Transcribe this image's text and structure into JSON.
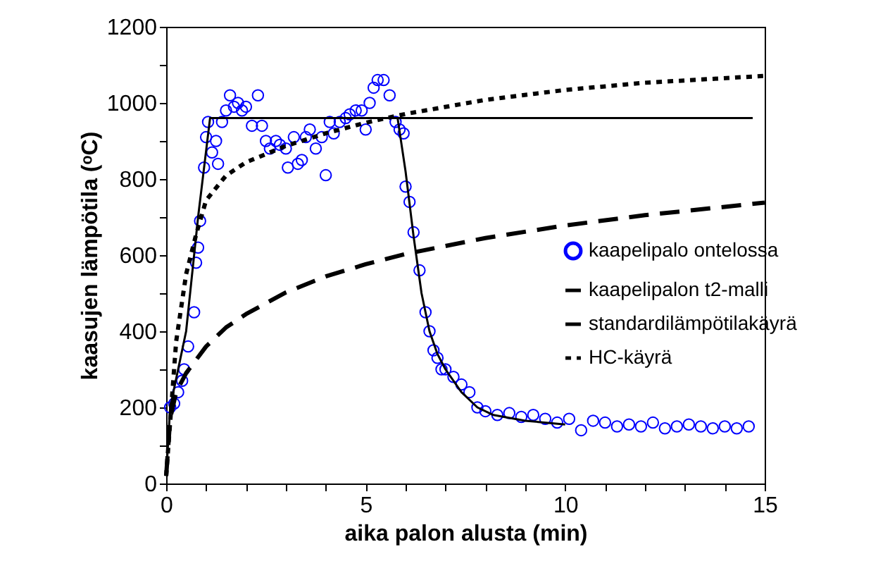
{
  "chart_data": {
    "type": "scatter",
    "xlabel": "aika palon alusta (min)",
    "ylabel": "kaasujen lämpötila (ᵒC)",
    "xlim": [
      0,
      15
    ],
    "ylim": [
      0,
      1200
    ],
    "xticks": [
      0,
      {
        "value": 1,
        "label": null
      },
      {
        "value": 2,
        "label": null
      },
      {
        "value": 3,
        "label": null
      },
      {
        "value": 4,
        "label": null
      },
      5,
      {
        "value": 6,
        "label": null
      },
      {
        "value": 7,
        "label": null
      },
      {
        "value": 8,
        "label": null
      },
      {
        "value": 9,
        "label": null
      },
      10,
      {
        "value": 11,
        "label": null
      },
      {
        "value": 12,
        "label": null
      },
      {
        "value": 13,
        "label": null
      },
      {
        "value": 14,
        "label": null
      },
      15
    ],
    "yticks": [
      0,
      {
        "value": 100,
        "label": null
      },
      200,
      {
        "value": 300,
        "label": null
      },
      400,
      {
        "value": 500,
        "label": null
      },
      600,
      {
        "value": 700,
        "label": null
      },
      800,
      {
        "value": 900,
        "label": null
      },
      1000,
      {
        "value": 1100,
        "label": null
      },
      1200
    ],
    "legend": "right",
    "grid": false,
    "series": [
      {
        "name": "kaapelipalo ontelossa",
        "marker": "circle",
        "color": "#0000ff",
        "x": [
          0.1,
          0.2,
          0.3,
          0.4,
          0.45,
          0.55,
          0.7,
          0.75,
          0.8,
          0.85,
          0.95,
          1.0,
          1.05,
          1.15,
          1.25,
          1.3,
          1.4,
          1.5,
          1.6,
          1.7,
          1.8,
          1.9,
          2.0,
          2.15,
          2.3,
          2.4,
          2.5,
          2.6,
          2.75,
          2.85,
          3.0,
          3.05,
          3.2,
          3.3,
          3.4,
          3.5,
          3.6,
          3.75,
          3.9,
          4.0,
          4.1,
          4.2,
          4.35,
          4.5,
          4.6,
          4.75,
          4.9,
          5.0,
          5.1,
          5.2,
          5.3,
          5.45,
          5.6,
          5.75,
          5.85,
          5.95,
          6.0,
          6.1,
          6.2,
          6.35,
          6.5,
          6.6,
          6.7,
          6.8,
          6.9,
          7.0,
          7.2,
          7.4,
          7.6,
          7.8,
          8.0,
          8.3,
          8.6,
          8.9,
          9.2,
          9.5,
          9.8,
          10.1,
          10.4,
          10.7,
          11.0,
          11.3,
          11.6,
          11.9,
          12.2,
          12.5,
          12.8,
          13.1,
          13.4,
          13.7,
          14.0,
          14.3,
          14.6
        ],
        "values": [
          200,
          210,
          240,
          270,
          300,
          360,
          450,
          580,
          620,
          690,
          830,
          910,
          950,
          870,
          900,
          840,
          950,
          980,
          1020,
          990,
          1000,
          980,
          990,
          940,
          1020,
          940,
          900,
          880,
          900,
          890,
          880,
          830,
          910,
          840,
          850,
          910,
          930,
          880,
          910,
          810,
          950,
          920,
          950,
          960,
          970,
          980,
          980,
          930,
          1000,
          1040,
          1060,
          1060,
          1020,
          950,
          930,
          920,
          780,
          740,
          660,
          560,
          450,
          400,
          350,
          330,
          300,
          300,
          280,
          260,
          240,
          200,
          190,
          180,
          185,
          175,
          180,
          170,
          160,
          170,
          140,
          165,
          160,
          150,
          155,
          150,
          160,
          145,
          150,
          155,
          150,
          145,
          150,
          145,
          150
        ]
      },
      {
        "name": "kaapelipalon t2-malli",
        "type": "line",
        "line_style": "solid",
        "color": "#000000",
        "x": [
          0,
          0.1,
          0.5,
          0.8,
          1.1,
          5.8,
          14.7,
          null,
          5.8,
          6.0,
          6.2,
          6.4,
          6.6,
          6.8,
          7.0,
          7.4,
          7.8,
          8.2,
          9,
          10
        ],
        "values": [
          20,
          200,
          400,
          700,
          960,
          960,
          960,
          null,
          960,
          820,
          650,
          500,
          400,
          340,
          300,
          240,
          200,
          180,
          165,
          155
        ]
      },
      {
        "name": "standardilämpötilakäyrä",
        "type": "line",
        "line_style": "dashed",
        "color": "#000000",
        "x": [
          0,
          0.1,
          0.25,
          0.5,
          1,
          1.5,
          2,
          3,
          4,
          5,
          6,
          8,
          10,
          12,
          15
        ],
        "values": [
          20,
          170,
          240,
          290,
          360,
          410,
          445,
          502,
          544,
          576,
          603,
          645,
          678,
          705,
          738
        ]
      },
      {
        "name": "HC-käyrä",
        "type": "line",
        "line_style": "dotted",
        "color": "#000000",
        "x": [
          0,
          0.25,
          0.5,
          0.75,
          1,
          1.5,
          2,
          3,
          4,
          5,
          6,
          8,
          10,
          12,
          15
        ],
        "values": [
          20,
          373,
          550,
          654,
          744,
          809,
          844,
          887,
          920,
          948,
          971,
          1008,
          1034,
          1053,
          1071
        ]
      }
    ]
  }
}
